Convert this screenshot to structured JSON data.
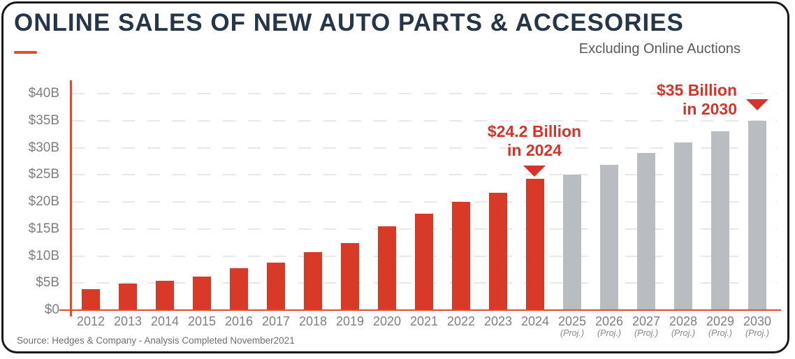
{
  "header": {
    "title": "ONLINE SALES OF NEW AUTO PARTS & ACCESORIES",
    "subtitle": "Excluding Online Auctions"
  },
  "footer": {
    "source": "Source: Hedges & Company - Analysis Completed November2021"
  },
  "colors": {
    "bar_red": "#d93a28",
    "bar_gray": "#b9bcc1",
    "axis_red": "#e8492c",
    "annotation_red": "#d5342a",
    "title_navy": "#253649",
    "subtitle_gray": "#58595b",
    "label_gray": "#7d7e80",
    "grid_gray": "#e7e8ea",
    "source_gray": "#6e6f71",
    "border_dark": "#181818"
  },
  "chart_data": {
    "type": "bar",
    "title": "ONLINE SALES OF NEW AUTO PARTS & ACCESORIES",
    "subtitle": "Excluding Online Auctions",
    "unit": "$B",
    "ylim": [
      0,
      40
    ],
    "ytick_step": 5,
    "ytick_labels": [
      "$0",
      "$5B",
      "$10B",
      "$15B",
      "$20B",
      "$25B",
      "$30B",
      "$35B",
      "$40B"
    ],
    "grid": "horizontal-dashed",
    "legend": "none",
    "categories": [
      "2012",
      "2013",
      "2014",
      "2015",
      "2016",
      "2017",
      "2018",
      "2019",
      "2020",
      "2021",
      "2022",
      "2023",
      "2024",
      "2025",
      "2026",
      "2027",
      "2028",
      "2029",
      "2030"
    ],
    "values": [
      3.9,
      4.9,
      5.4,
      6.2,
      7.7,
      8.8,
      10.7,
      12.4,
      15.5,
      17.8,
      20.0,
      21.7,
      24.2,
      25.0,
      26.8,
      29.0,
      31.0,
      33.0,
      35.0
    ],
    "projected_years": [
      "2025",
      "2026",
      "2027",
      "2028",
      "2029",
      "2030"
    ],
    "projected_suffix": "(Proj.)",
    "annotations": [
      {
        "line1": "$24.2 Billion",
        "line2": "in 2024",
        "target_year": "2024",
        "marker": "down-triangle"
      },
      {
        "line1": "$35 Billion",
        "line2": "in 2030",
        "target_year": "2030",
        "marker": "down-triangle"
      }
    ]
  }
}
